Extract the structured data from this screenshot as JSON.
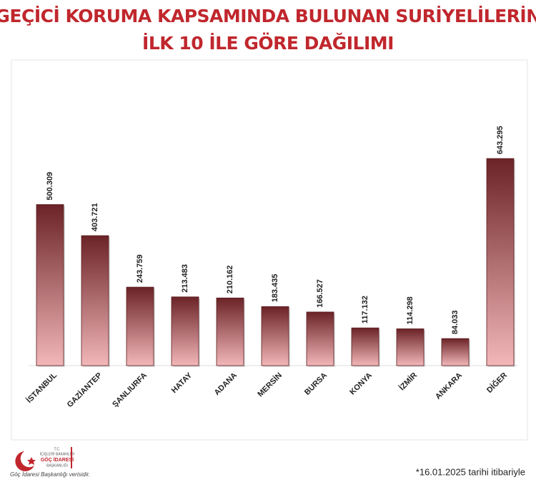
{
  "chart_data": {
    "type": "bar",
    "title": [
      "GEÇİCİ KORUMA KAPSAMINDA BULUNAN SURİYELİLERİN",
      "İLK 10 İLE GÖRE DAĞILIMI"
    ],
    "categories": [
      "İSTANBUL",
      "GAZİANTEP",
      "ŞANLIURFA",
      "HATAY",
      "ADANA",
      "MERSİN",
      "BURSA",
      "KONYA",
      "İZMİR",
      "ANKARA",
      "DİĞER"
    ],
    "values": [
      500309,
      403721,
      243759,
      213483,
      210162,
      183435,
      166527,
      117132,
      114298,
      84033,
      643295
    ],
    "value_labels": [
      "500.309",
      "403.721",
      "243.759",
      "213.483",
      "210.162",
      "183.435",
      "166.527",
      "117.132",
      "114.298",
      "84.033",
      "643.295"
    ],
    "gradient": [
      "#6b2327",
      "#f2b7b9"
    ],
    "footnote": "*16.01.2025 tarihi itibariyle",
    "logo": {
      "lines": [
        "T.C.",
        "İÇİŞLERİ BAKANLIĞI",
        "GÖÇ İDARESİ",
        "BAŞKANLIĞI"
      ],
      "source": "Göç İdaresi Başkanlığı verisidir."
    }
  }
}
